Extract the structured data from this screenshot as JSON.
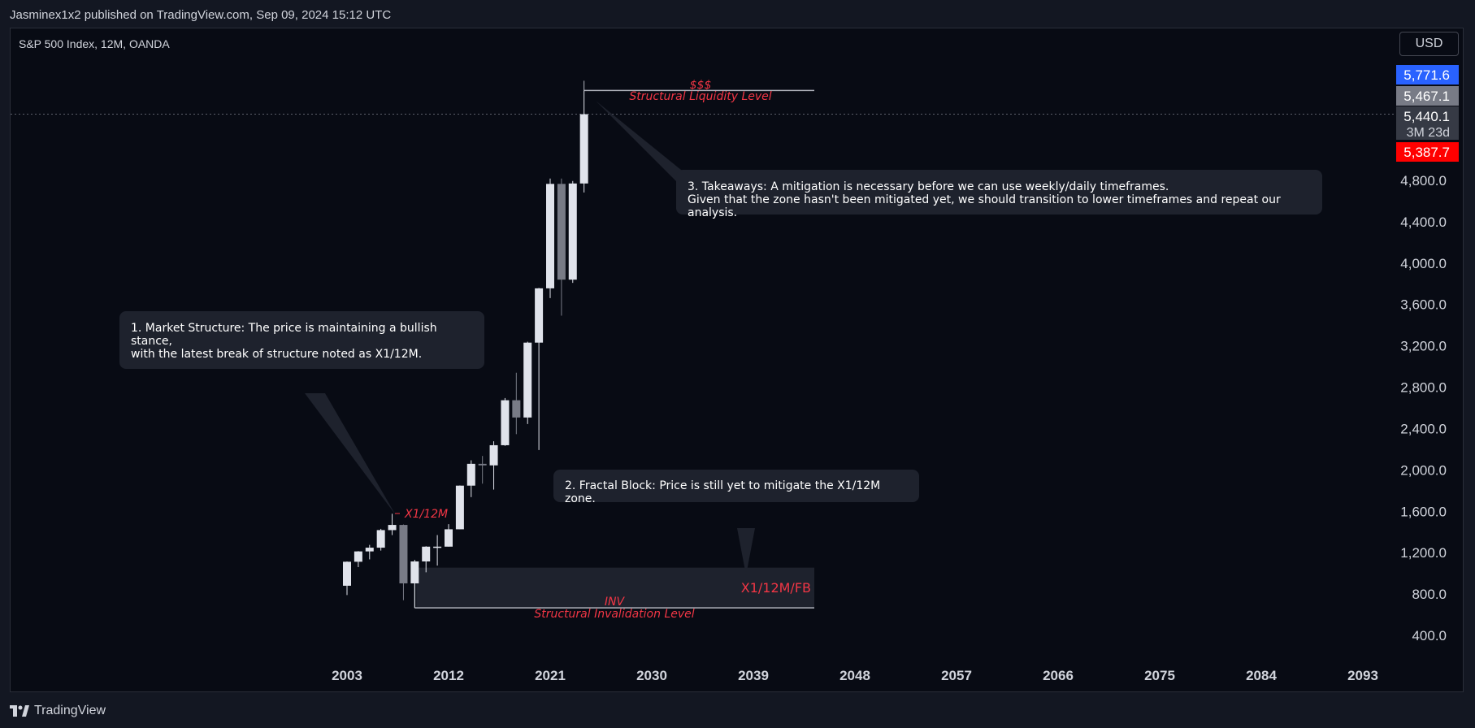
{
  "header": {
    "published_line": "Jasminex1x2 published on TradingView.com, Sep 09, 2024 15:12 UTC"
  },
  "chart_header": {
    "symbol_line": "S&P 500 Index, 12M, OANDA",
    "currency": "USD"
  },
  "footer": {
    "brand": "TradingView"
  },
  "colors": {
    "background": "#080b14",
    "candle_up": "#e0e3eb",
    "candle_down": "#787b86",
    "annotation_red": "#f23645",
    "price_blue": "#2962ff"
  },
  "chart_data": {
    "type": "candlestick",
    "xlabel": "",
    "ylabel": "",
    "x_ticks": [
      "2003",
      "2012",
      "2021",
      "2030",
      "2039",
      "2048",
      "2057",
      "2066",
      "2075",
      "2084",
      "2093"
    ],
    "y_ticks": [
      "4,800.0",
      "4,400.0",
      "4,000.0",
      "3,600.0",
      "3,200.0",
      "2,800.0",
      "2,400.0",
      "2,000.0",
      "1,600.0",
      "1,200.0",
      "800.0",
      "400.0"
    ],
    "price_labels": [
      {
        "text": "5,771.6",
        "value": 5771.6,
        "color": "#2962ff"
      },
      {
        "text": "5,467.1",
        "value": 5467.1,
        "color": "#787b86"
      },
      {
        "text": "5,440.1",
        "value": 5440.1,
        "color": "#363a45",
        "sub": "3M 23d"
      },
      {
        "text": "5,387.7",
        "value": 5387.7,
        "color": "#ff0000"
      }
    ],
    "ylim": [
      250,
      5900
    ],
    "candles": [
      {
        "year": 2003,
        "open": 880,
        "high": 1115,
        "low": 790,
        "close": 1112
      },
      {
        "year": 2004,
        "open": 1112,
        "high": 1215,
        "low": 1060,
        "close": 1212
      },
      {
        "year": 2005,
        "open": 1212,
        "high": 1275,
        "low": 1135,
        "close": 1248
      },
      {
        "year": 2006,
        "open": 1248,
        "high": 1430,
        "low": 1220,
        "close": 1418
      },
      {
        "year": 2007,
        "open": 1418,
        "high": 1576,
        "low": 1370,
        "close": 1468
      },
      {
        "year": 2008,
        "open": 1468,
        "high": 1472,
        "low": 740,
        "close": 903
      },
      {
        "year": 2009,
        "open": 903,
        "high": 1130,
        "low": 666,
        "close": 1115
      },
      {
        "year": 2010,
        "open": 1115,
        "high": 1262,
        "low": 1010,
        "close": 1258
      },
      {
        "year": 2011,
        "open": 1258,
        "high": 1370,
        "low": 1075,
        "close": 1258
      },
      {
        "year": 2012,
        "open": 1258,
        "high": 1475,
        "low": 1258,
        "close": 1426
      },
      {
        "year": 2013,
        "open": 1426,
        "high": 1850,
        "low": 1426,
        "close": 1848
      },
      {
        "year": 2014,
        "open": 1848,
        "high": 2093,
        "low": 1737,
        "close": 2059
      },
      {
        "year": 2015,
        "open": 2059,
        "high": 2135,
        "low": 1867,
        "close": 2044
      },
      {
        "year": 2016,
        "open": 2044,
        "high": 2277,
        "low": 1810,
        "close": 2239
      },
      {
        "year": 2017,
        "open": 2239,
        "high": 2695,
        "low": 2233,
        "close": 2674
      },
      {
        "year": 2018,
        "open": 2674,
        "high": 2940,
        "low": 2346,
        "close": 2507
      },
      {
        "year": 2019,
        "open": 2507,
        "high": 3240,
        "low": 2444,
        "close": 3231
      },
      {
        "year": 2020,
        "open": 3231,
        "high": 3760,
        "low": 2192,
        "close": 3756
      },
      {
        "year": 2021,
        "open": 3756,
        "high": 4818,
        "low": 3662,
        "close": 4766
      },
      {
        "year": 2022,
        "open": 4766,
        "high": 4818,
        "low": 3492,
        "close": 3840
      },
      {
        "year": 2023,
        "open": 3840,
        "high": 4794,
        "low": 3809,
        "close": 4770
      },
      {
        "year": 2024,
        "open": 4770,
        "high": 5669,
        "low": 4683,
        "close": 5440
      }
    ],
    "annotations": {
      "liquidity_top": "$$$",
      "liquidity_label": "Structural Liquidity Level",
      "liquidity_price": 5669,
      "x1_label": "X1/12M",
      "zone_label": "X1/12M/FB",
      "zone_top": 1055,
      "inv_top": "INV",
      "inv_label": "Structural Invalidation Level",
      "inv_price": 666
    }
  },
  "callouts": {
    "c1": "1. Market Structure: The price is maintaining a bullish stance,\nwith the latest break of structure noted as X1/12M.",
    "c2": "2. Fractal Block: Price is still yet to mitigate the X1/12M zone.",
    "c3": "3. Takeaways: A mitigation is necessary before we can use weekly/daily timeframes.\n Given that the zone hasn't been mitigated yet, we should transition to lower timeframes and repeat our analysis."
  }
}
